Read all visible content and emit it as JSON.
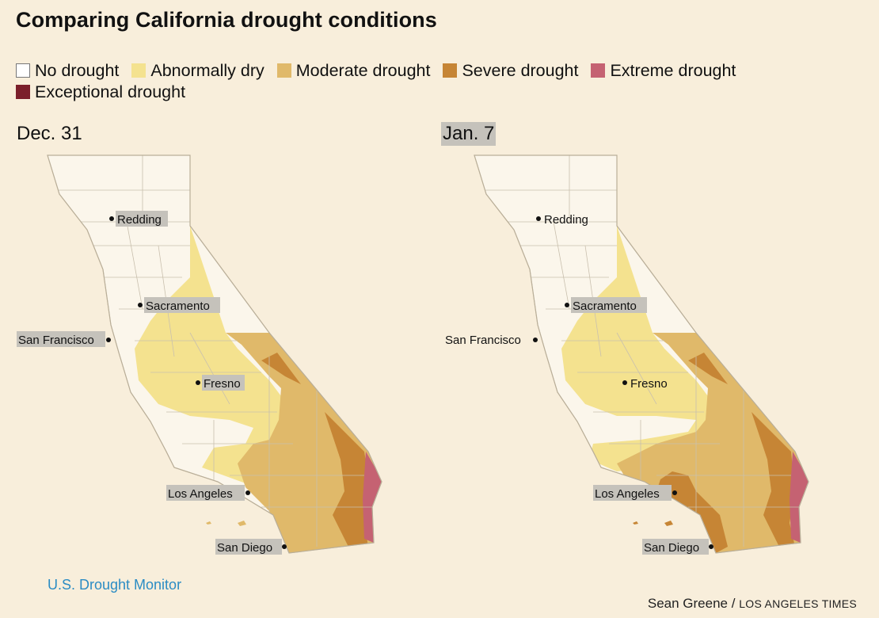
{
  "title": "Comparing California drought conditions",
  "legend": [
    {
      "label": "No drought",
      "color": "#ffffff"
    },
    {
      "label": "Abnormally dry",
      "color": "#f4e28f"
    },
    {
      "label": "Moderate drought",
      "color": "#e0b96a"
    },
    {
      "label": "Severe drought",
      "color": "#c68535"
    },
    {
      "label": "Extreme drought",
      "color": "#c56272"
    },
    {
      "label": "Exceptional drought",
      "color": "#7b1f2b"
    }
  ],
  "panels": [
    {
      "date": "Dec. 31",
      "cities": [
        "Redding",
        "Sacramento",
        "San Francisco",
        "Fresno",
        "Los Angeles",
        "San Diego"
      ]
    },
    {
      "date": "Jan. 7",
      "cities": [
        "Redding",
        "Sacramento",
        "San Francisco",
        "Fresno",
        "Los Angeles",
        "San Diego"
      ]
    }
  ],
  "source": "U.S. Drought Monitor",
  "credit": {
    "author": "Sean Greene",
    "separator": "/",
    "org": "LOS ANGELES TIMES"
  }
}
